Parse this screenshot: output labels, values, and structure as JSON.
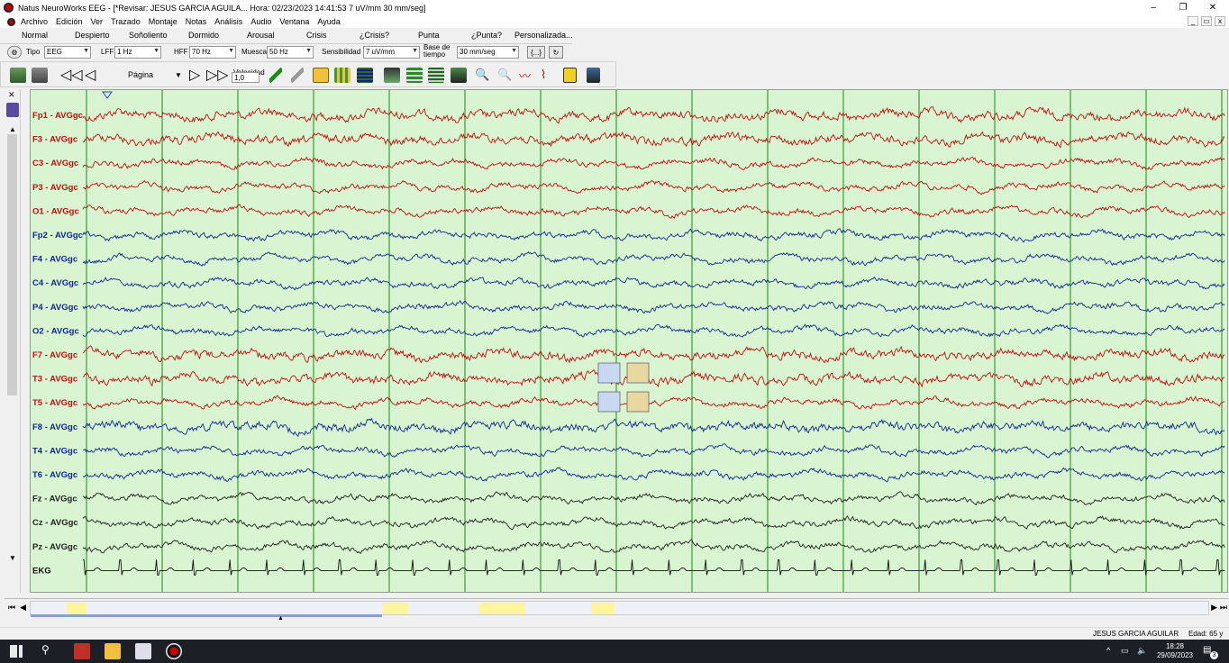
{
  "window": {
    "title": "Natus NeuroWorks EEG - [*Revisar:  JESUS  GARCIA AGUILA...  Hora: 02/23/2023 14:41:53  7 uV/mm  30 mm/seg]",
    "minimize": "–",
    "maximize": "❐",
    "close": "✕"
  },
  "menu": [
    "Archivo",
    "Edición",
    "Ver",
    "Trazado",
    "Montaje",
    "Notas",
    "Análisis",
    "Audio",
    "Ventana",
    "Ayuda"
  ],
  "mdi_controls": [
    "_",
    "▭",
    "x"
  ],
  "event_buttons": [
    "Normal",
    "Despierto",
    "Soñoliento",
    "Dormido",
    "Arousal",
    "Crisis",
    "¿Crisis?",
    "Punta",
    "¿Punta?",
    "Personalizada..."
  ],
  "settings": {
    "tipo_label": "Tipo",
    "tipo_value": "EEG",
    "lff_label": "LFF",
    "lff_value": "1 Hz",
    "hff_label": "HFF",
    "hff_value": "70 Hz",
    "muesca_label": "Muesca",
    "muesca_value": "50 Hz",
    "sens_label": "Sensibilidad",
    "sens_value": "7 uV/mm",
    "base_label": "Base de tiempo",
    "base_value": "30 mm/seg",
    "brace_button": "{...}"
  },
  "toolbar": {
    "page_label": "Página",
    "speed_label": "Velocidad",
    "speed_value": "1,0"
  },
  "channels": [
    {
      "label": "Fp1 - AVGgc",
      "color": "#c01010"
    },
    {
      "label": "F3 - AVGgc",
      "color": "#c01010"
    },
    {
      "label": "C3 - AVGgc",
      "color": "#c01010"
    },
    {
      "label": "P3 - AVGgc",
      "color": "#c01010"
    },
    {
      "label": "O1 - AVGgc",
      "color": "#c01010"
    },
    {
      "label": "Fp2 - AVGgc",
      "color": "#102a8c"
    },
    {
      "label": "F4 - AVGgc",
      "color": "#102a8c"
    },
    {
      "label": "C4 - AVGgc",
      "color": "#102a8c"
    },
    {
      "label": "P4 - AVGgc",
      "color": "#102a8c"
    },
    {
      "label": "O2 - AVGgc",
      "color": "#102a8c"
    },
    {
      "label": "F7 - AVGgc",
      "color": "#c01010"
    },
    {
      "label": "T3 - AVGgc",
      "color": "#c01010"
    },
    {
      "label": "T5 - AVGgc",
      "color": "#c01010"
    },
    {
      "label": "F8 - AVGgc",
      "color": "#102a8c"
    },
    {
      "label": "T4 - AVGgc",
      "color": "#102a8c"
    },
    {
      "label": "T6 - AVGgc",
      "color": "#102a8c"
    },
    {
      "label": "Fz - AVGgc",
      "color": "#222222"
    },
    {
      "label": "Cz - AVGgc",
      "color": "#222222"
    },
    {
      "label": "Pz - AVGgc",
      "color": "#222222"
    },
    {
      "label": "EKG",
      "color": "#111111"
    }
  ],
  "status": {
    "patient": "JESUS  GARCIA AGUILAR",
    "age": "Edad: 65 y"
  },
  "taskbar": {
    "time": "18:28",
    "date": "29/09/2023",
    "notifications": "3"
  },
  "colors": {
    "eeg_background": "#d8f4d0",
    "second_gridline": "#1a8a1a",
    "left_hemisphere": "#c01010",
    "right_hemisphere": "#102a8c",
    "midline": "#222222",
    "timeline_marker": "#fff59a"
  }
}
